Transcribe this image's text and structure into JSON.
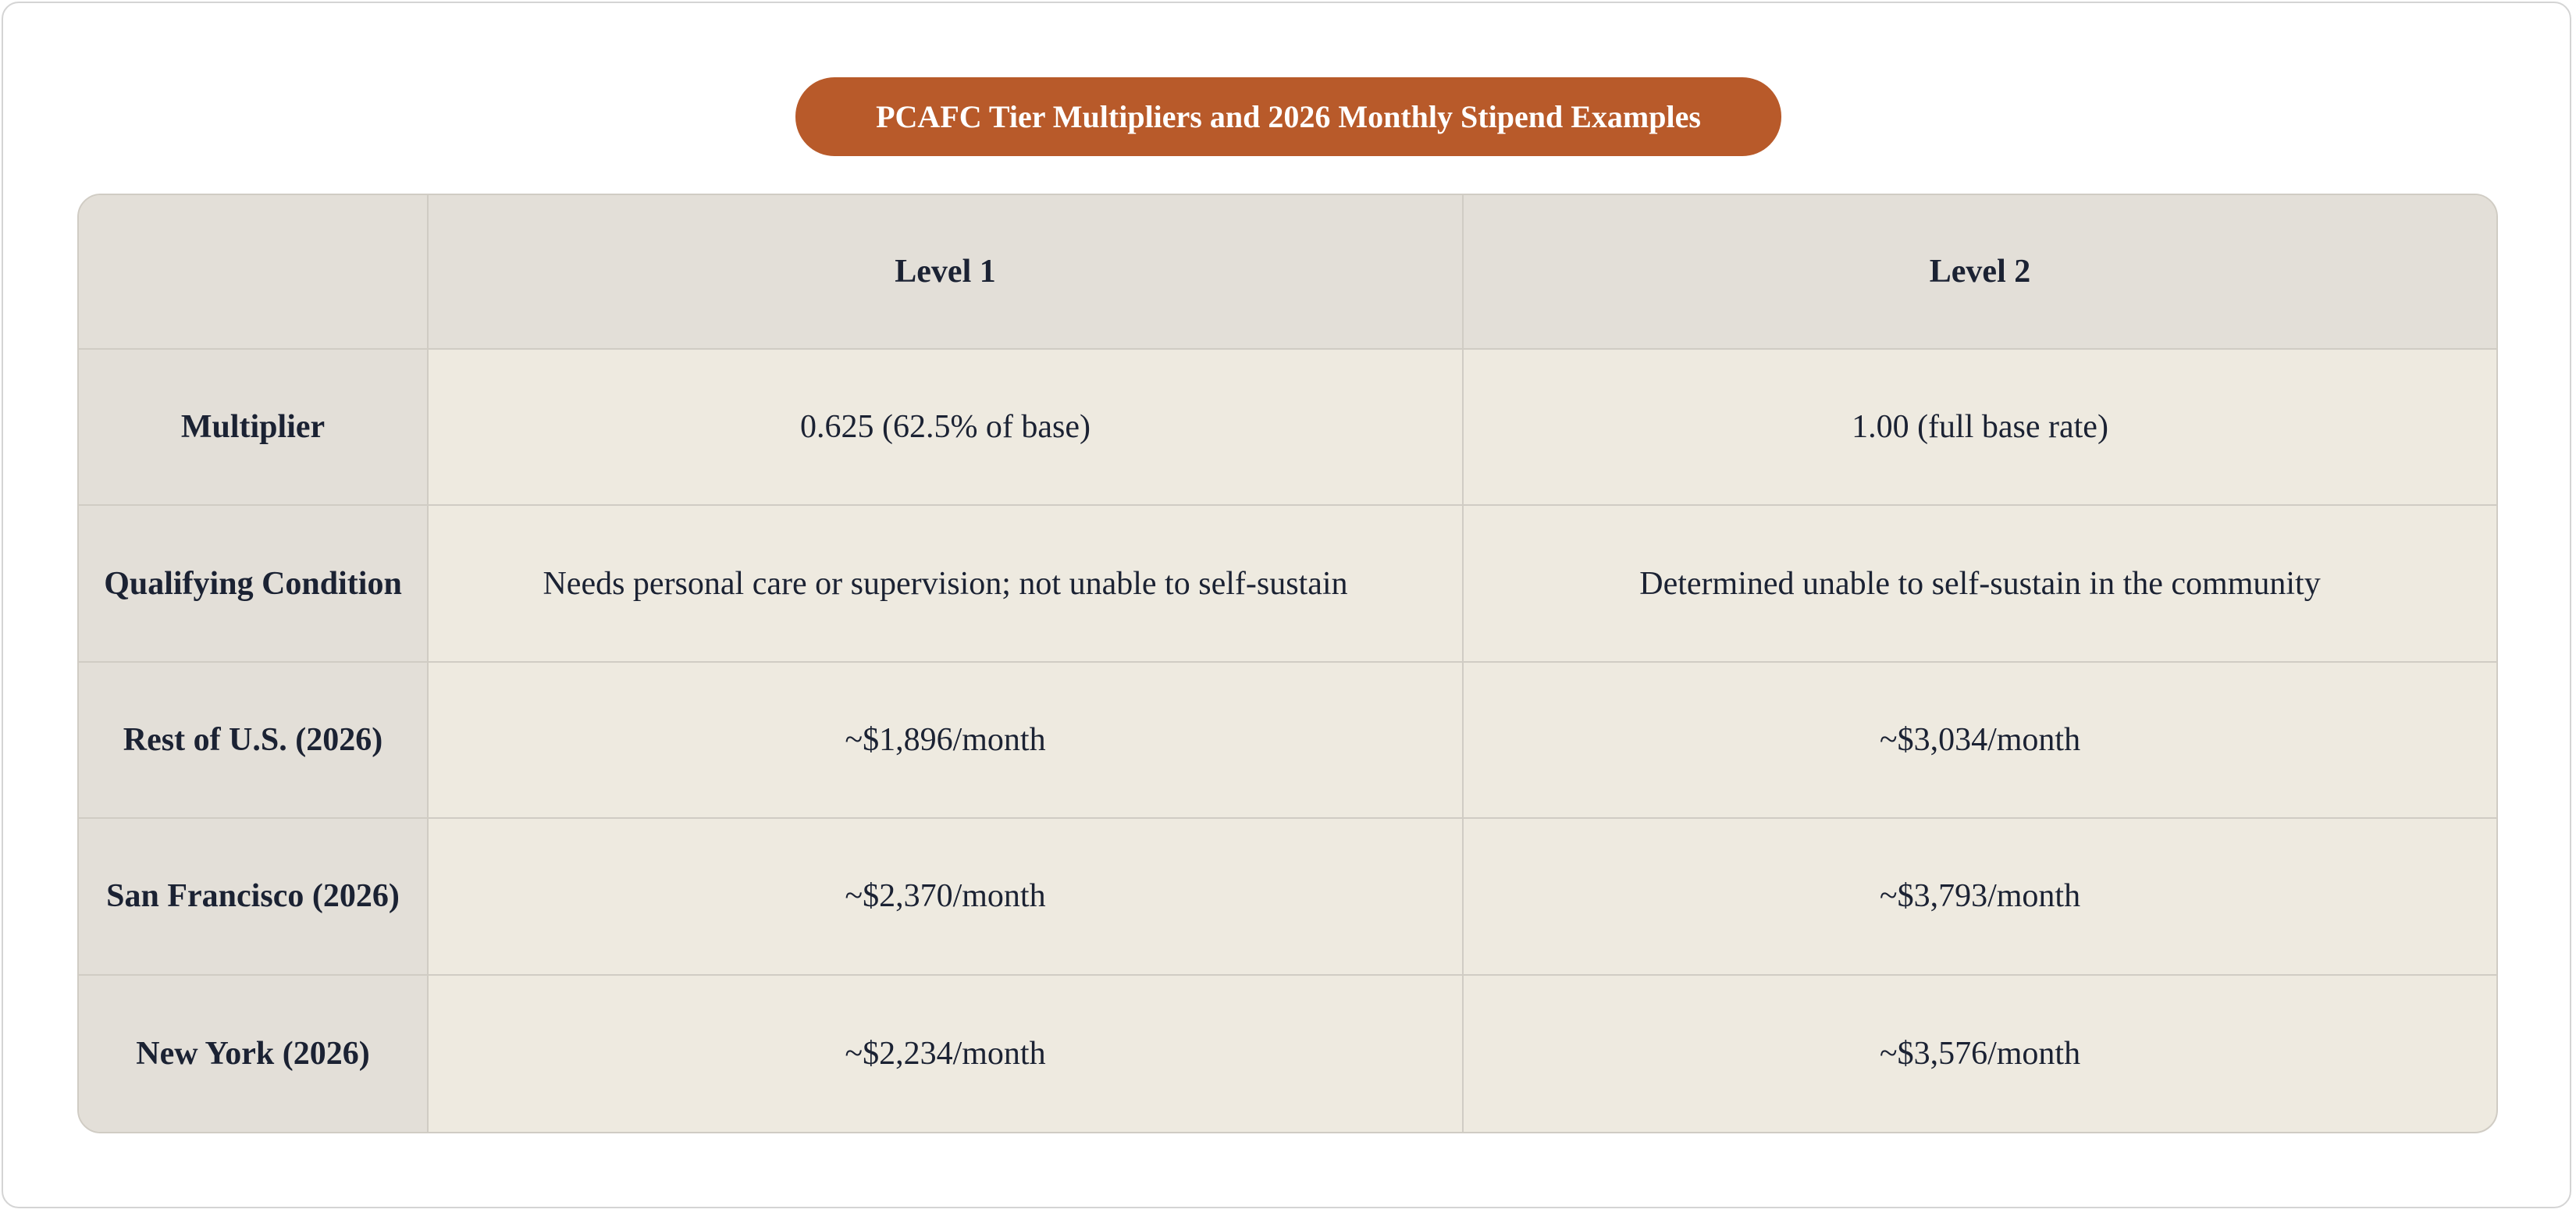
{
  "header": {
    "title": "PCAFC Tier Multipliers and 2026 Monthly Stipend Examples"
  },
  "table": {
    "columns": [
      "Level 1",
      "Level 2"
    ],
    "rows": [
      [
        "Multiplier",
        "0.625 (62.5% of base)",
        "1.00 (full base rate)"
      ],
      [
        "Qualifying Condition",
        "Needs personal care or supervision; not unable to self-sustain",
        "Determined unable to self-sustain in the community"
      ],
      [
        "Rest of U.S. (2026)",
        "~$1,896/month",
        "~$3,034/month"
      ],
      [
        "San Francisco (2026)",
        "~$2,370/month",
        "~$3,793/month"
      ],
      [
        "New York (2026)",
        "~$2,234/month",
        "~$3,576/month"
      ]
    ]
  }
}
